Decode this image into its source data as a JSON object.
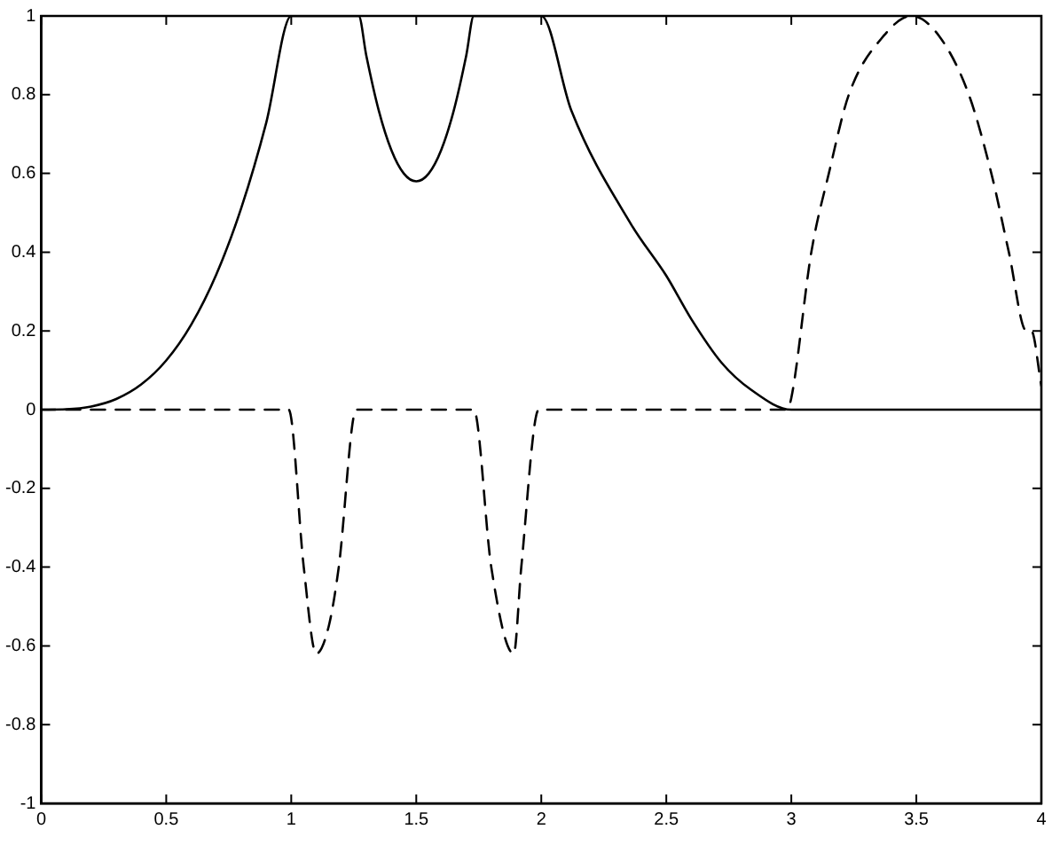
{
  "chart_data": {
    "type": "line",
    "xlim": [
      0,
      4
    ],
    "ylim": [
      -1,
      1
    ],
    "xticks": [
      0,
      0.5,
      1,
      1.5,
      2,
      2.5,
      3,
      3.5,
      4
    ],
    "yticks": [
      -1,
      -0.8,
      -0.6,
      -0.4,
      -0.2,
      0,
      0.2,
      0.4,
      0.6,
      0.8,
      1
    ],
    "grid": false,
    "legend": false,
    "marker": "none",
    "series": [
      {
        "color": "#000000",
        "line_style": "solid",
        "x": [
          0,
          0.1,
          0.2,
          0.3,
          0.4,
          0.5,
          0.6,
          0.7,
          0.8,
          0.9,
          1,
          1.27,
          1.3,
          1.35,
          1.4,
          1.45,
          1.5,
          1.55,
          1.6,
          1.65,
          1.7,
          1.73,
          2,
          2.12,
          2.36,
          2.5,
          2.6,
          2.72,
          2.84,
          3,
          3.5,
          4
        ],
        "values": [
          0,
          0.001,
          0.008,
          0.027,
          0.064,
          0.125,
          0.216,
          0.343,
          0.512,
          0.729,
          1,
          1,
          0.9,
          0.76,
          0.66,
          0.6,
          0.58,
          0.6,
          0.66,
          0.76,
          0.9,
          1,
          1,
          0.76,
          0.47,
          0.34,
          0.23,
          0.12,
          0.05,
          0,
          0,
          0
        ]
      },
      {
        "color": "#000000",
        "line_style": "dashed",
        "x": [
          0,
          0.5,
          0.99,
          1.05,
          1.1,
          1.15,
          1.19,
          1.26,
          1.5,
          1.73,
          1.8,
          1.89,
          1.92,
          1.99,
          2.5,
          2.98,
          3,
          3.08,
          3.15,
          3.23,
          3.37,
          3.48,
          3.59,
          3.71,
          3.8,
          3.87,
          3.94,
          3.96,
          4
        ],
        "values": [
          0,
          0,
          0,
          -0.4,
          -0.62,
          -0.55,
          -0.4,
          0,
          0,
          0,
          -0.4,
          -0.62,
          -0.4,
          0,
          0,
          0,
          0.03,
          0.4,
          0.6,
          0.8,
          0.95,
          1,
          0.95,
          0.8,
          0.6,
          0.4,
          0.2,
          0.2,
          0.06
        ]
      }
    ]
  }
}
